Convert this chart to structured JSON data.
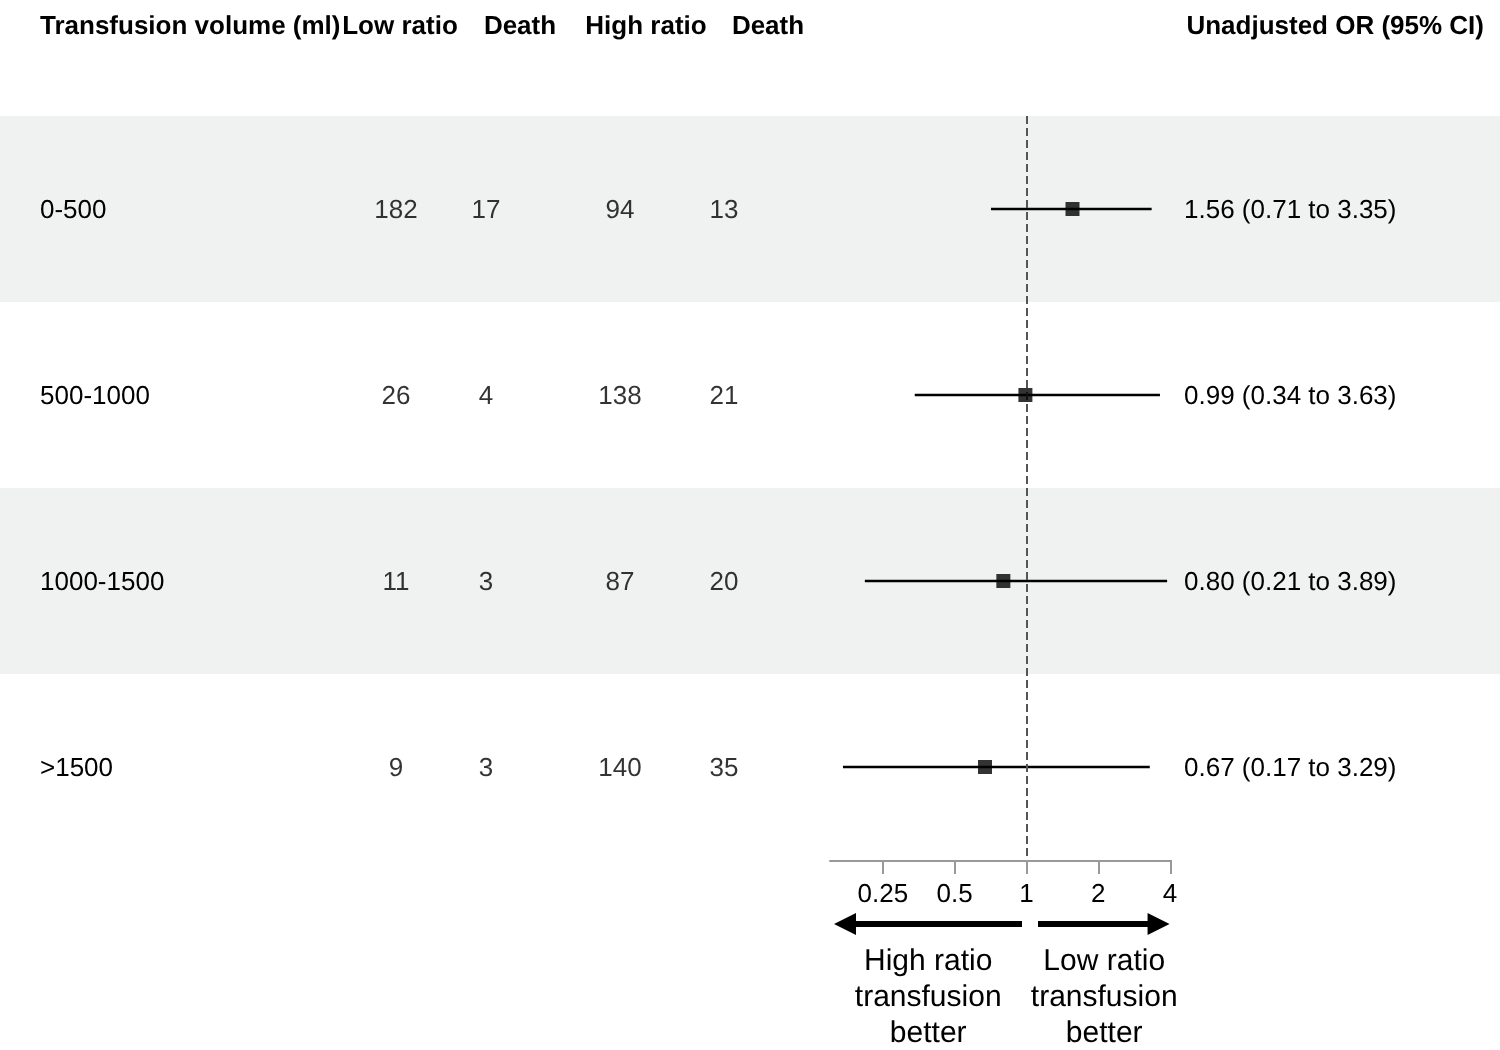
{
  "chart_data": [
    {
      "type": "other",
      "xlabel": "Transfusion volume (ml)",
      "categories": [
        "0-500",
        "500-1000",
        "1000-1500",
        ">1500"
      ],
      "data_labels": true,
      "series": [
        {
          "name": "Low ratio",
          "values": [
            182,
            26,
            11,
            9
          ]
        },
        {
          "name": "Death",
          "values": [
            17,
            4,
            3,
            3
          ]
        },
        {
          "name": "High ratio",
          "values": [
            94,
            138,
            87,
            140
          ]
        },
        {
          "name": "Death",
          "values": [
            13,
            21,
            20,
            35
          ]
        }
      ]
    },
    {
      "type": "scatter",
      "orientation": "horizontal",
      "categories": [
        null,
        null,
        null,
        null
      ],
      "values": [
        1.56,
        0.99,
        0.8,
        0.67
      ],
      "color": "#000000",
      "marker": "square",
      "errors": [
        [
          0.71,
          3.35
        ],
        [
          0.34,
          3.63
        ],
        [
          0.21,
          3.89
        ],
        [
          0.17,
          3.29
        ]
      ],
      "value_labels": [
        "1.56 (0.71 to 3.35)",
        "0.99 (0.34 to 3.63)",
        "0.80 (0.21 to 3.89)",
        "0.67 (0.17 to 3.29)"
      ],
      "log": "x",
      "xlim": [
        0.15,
        4
      ],
      "xticks": [
        0.25,
        0.5,
        1,
        2,
        4
      ],
      "tick_labels": "x",
      "grid": false,
      "ref_lines": [
        {
          "axis": "x",
          "value": 1,
          "color": "#555555",
          "line_style": "dashed"
        }
      ],
      "annotations": [
        "Unadjusted OR (95% CI)",
        "High ratio transfusion better",
        "Low ratio transfusion better"
      ]
    }
  ]
}
